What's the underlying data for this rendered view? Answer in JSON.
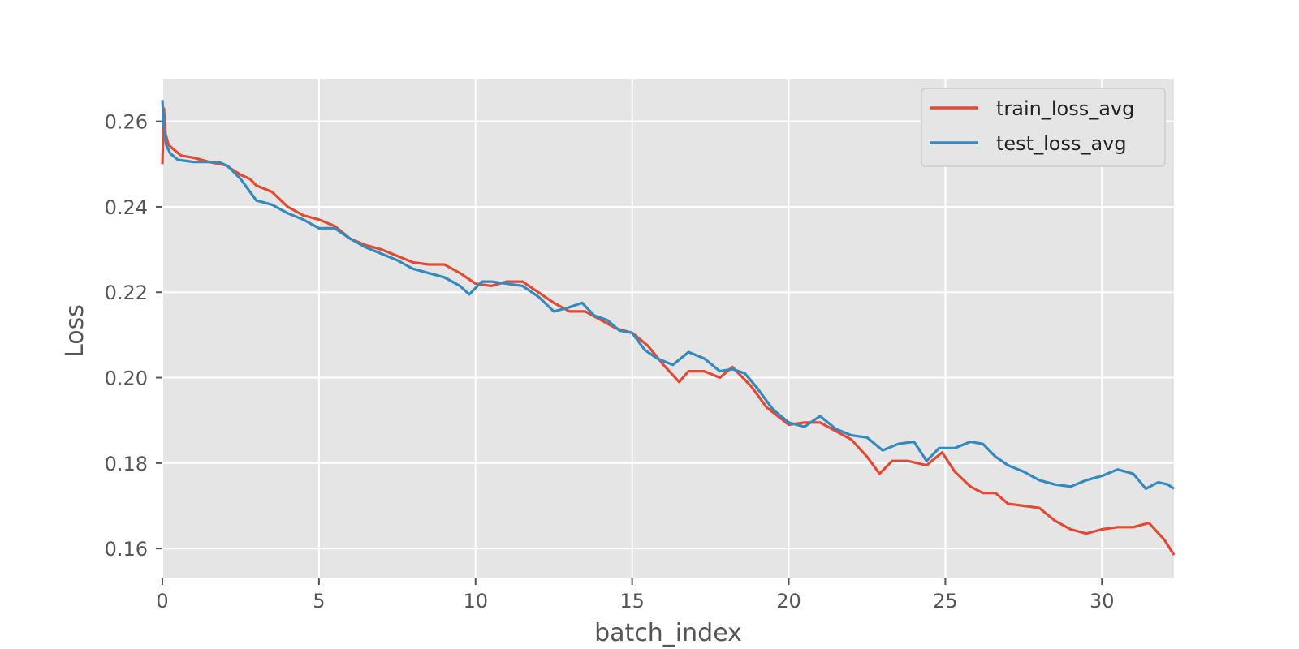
{
  "chart_data": {
    "type": "line",
    "title": "",
    "xlabel": "batch_index",
    "ylabel": "Loss",
    "xlim": [
      0,
      32.3
    ],
    "ylim": [
      0.153,
      0.27
    ],
    "x_ticks": [
      0,
      5,
      10,
      15,
      20,
      25,
      30
    ],
    "y_ticks": [
      0.16,
      0.18,
      0.2,
      0.22,
      0.24,
      0.26
    ],
    "y_tick_labels": [
      "0.16",
      "0.18",
      "0.20",
      "0.22",
      "0.24",
      "0.26"
    ],
    "grid": true,
    "legend_position": "top-right",
    "background": "#e5e5e5",
    "series": [
      {
        "name": "train_loss_avg",
        "color": "#e24a33",
        "points": [
          [
            0,
            0.25
          ],
          [
            0.05,
            0.263
          ],
          [
            0.1,
            0.257
          ],
          [
            0.2,
            0.2545
          ],
          [
            0.35,
            0.2535
          ],
          [
            0.6,
            0.252
          ],
          [
            1.0,
            0.2515
          ],
          [
            1.5,
            0.2505
          ],
          [
            2.0,
            0.2498
          ],
          [
            2.5,
            0.2475
          ],
          [
            2.8,
            0.2465
          ],
          [
            3.0,
            0.245
          ],
          [
            3.5,
            0.2435
          ],
          [
            4.0,
            0.24
          ],
          [
            4.5,
            0.238
          ],
          [
            5.0,
            0.237
          ],
          [
            5.5,
            0.2355
          ],
          [
            6.0,
            0.2325
          ],
          [
            6.5,
            0.231
          ],
          [
            7.0,
            0.23
          ],
          [
            7.5,
            0.2285
          ],
          [
            8.0,
            0.227
          ],
          [
            8.5,
            0.2265
          ],
          [
            9.0,
            0.2265
          ],
          [
            9.5,
            0.2245
          ],
          [
            10.0,
            0.222
          ],
          [
            10.5,
            0.2215
          ],
          [
            11.0,
            0.2225
          ],
          [
            11.5,
            0.2225
          ],
          [
            12.0,
            0.22
          ],
          [
            12.5,
            0.2175
          ],
          [
            13.0,
            0.2155
          ],
          [
            13.5,
            0.2155
          ],
          [
            14.0,
            0.2135
          ],
          [
            14.5,
            0.2115
          ],
          [
            15.0,
            0.2105
          ],
          [
            15.5,
            0.2075
          ],
          [
            16.0,
            0.203
          ],
          [
            16.5,
            0.199
          ],
          [
            16.8,
            0.2015
          ],
          [
            17.3,
            0.2015
          ],
          [
            17.8,
            0.2
          ],
          [
            18.2,
            0.2025
          ],
          [
            18.8,
            0.198
          ],
          [
            19.3,
            0.193
          ],
          [
            20.0,
            0.189
          ],
          [
            20.5,
            0.1895
          ],
          [
            21.0,
            0.1895
          ],
          [
            21.5,
            0.1875
          ],
          [
            22.0,
            0.1855
          ],
          [
            22.5,
            0.1815
          ],
          [
            22.9,
            0.1775
          ],
          [
            23.3,
            0.1805
          ],
          [
            23.8,
            0.1805
          ],
          [
            24.4,
            0.1795
          ],
          [
            24.9,
            0.1825
          ],
          [
            25.3,
            0.178
          ],
          [
            25.8,
            0.1745
          ],
          [
            26.2,
            0.173
          ],
          [
            26.6,
            0.173
          ],
          [
            27.0,
            0.1705
          ],
          [
            27.5,
            0.17
          ],
          [
            28.0,
            0.1695
          ],
          [
            28.5,
            0.1665
          ],
          [
            29.0,
            0.1645
          ],
          [
            29.5,
            0.1635
          ],
          [
            30.0,
            0.1645
          ],
          [
            30.5,
            0.165
          ],
          [
            31.0,
            0.165
          ],
          [
            31.5,
            0.166
          ],
          [
            32.0,
            0.162
          ],
          [
            32.3,
            0.1585
          ]
        ]
      },
      {
        "name": "test_loss_avg",
        "color": "#348abd",
        "points": [
          [
            0,
            0.265
          ],
          [
            0.05,
            0.259
          ],
          [
            0.12,
            0.2545
          ],
          [
            0.25,
            0.2525
          ],
          [
            0.5,
            0.251
          ],
          [
            1.0,
            0.2505
          ],
          [
            1.5,
            0.2505
          ],
          [
            1.8,
            0.2505
          ],
          [
            2.1,
            0.2495
          ],
          [
            2.5,
            0.2465
          ],
          [
            2.8,
            0.2435
          ],
          [
            3.0,
            0.2415
          ],
          [
            3.5,
            0.2405
          ],
          [
            4.0,
            0.2385
          ],
          [
            4.5,
            0.237
          ],
          [
            5.0,
            0.235
          ],
          [
            5.5,
            0.235
          ],
          [
            6.0,
            0.2325
          ],
          [
            6.5,
            0.2305
          ],
          [
            7.0,
            0.229
          ],
          [
            7.5,
            0.2275
          ],
          [
            8.0,
            0.2255
          ],
          [
            8.5,
            0.2245
          ],
          [
            9.0,
            0.2235
          ],
          [
            9.5,
            0.2215
          ],
          [
            9.8,
            0.2195
          ],
          [
            10.2,
            0.2225
          ],
          [
            10.5,
            0.2225
          ],
          [
            11.0,
            0.222
          ],
          [
            11.5,
            0.2215
          ],
          [
            12.0,
            0.219
          ],
          [
            12.5,
            0.2155
          ],
          [
            13.0,
            0.2165
          ],
          [
            13.4,
            0.2175
          ],
          [
            13.8,
            0.2145
          ],
          [
            14.2,
            0.2135
          ],
          [
            14.6,
            0.211
          ],
          [
            15.0,
            0.2105
          ],
          [
            15.4,
            0.2065
          ],
          [
            15.8,
            0.2045
          ],
          [
            16.3,
            0.203
          ],
          [
            16.8,
            0.206
          ],
          [
            17.3,
            0.2045
          ],
          [
            17.8,
            0.2015
          ],
          [
            18.2,
            0.202
          ],
          [
            18.6,
            0.201
          ],
          [
            19.0,
            0.1975
          ],
          [
            19.5,
            0.1925
          ],
          [
            20.0,
            0.1895
          ],
          [
            20.5,
            0.1885
          ],
          [
            21.0,
            0.191
          ],
          [
            21.5,
            0.188
          ],
          [
            22.0,
            0.1865
          ],
          [
            22.5,
            0.186
          ],
          [
            23.0,
            0.183
          ],
          [
            23.5,
            0.1845
          ],
          [
            24.0,
            0.185
          ],
          [
            24.4,
            0.1805
          ],
          [
            24.8,
            0.1835
          ],
          [
            25.3,
            0.1835
          ],
          [
            25.8,
            0.185
          ],
          [
            26.2,
            0.1845
          ],
          [
            26.6,
            0.1815
          ],
          [
            27.0,
            0.1795
          ],
          [
            27.5,
            0.178
          ],
          [
            28.0,
            0.176
          ],
          [
            28.5,
            0.175
          ],
          [
            29.0,
            0.1745
          ],
          [
            29.5,
            0.176
          ],
          [
            30.0,
            0.177
          ],
          [
            30.5,
            0.1785
          ],
          [
            31.0,
            0.1775
          ],
          [
            31.4,
            0.174
          ],
          [
            31.8,
            0.1755
          ],
          [
            32.1,
            0.175
          ],
          [
            32.3,
            0.174
          ]
        ]
      }
    ]
  }
}
